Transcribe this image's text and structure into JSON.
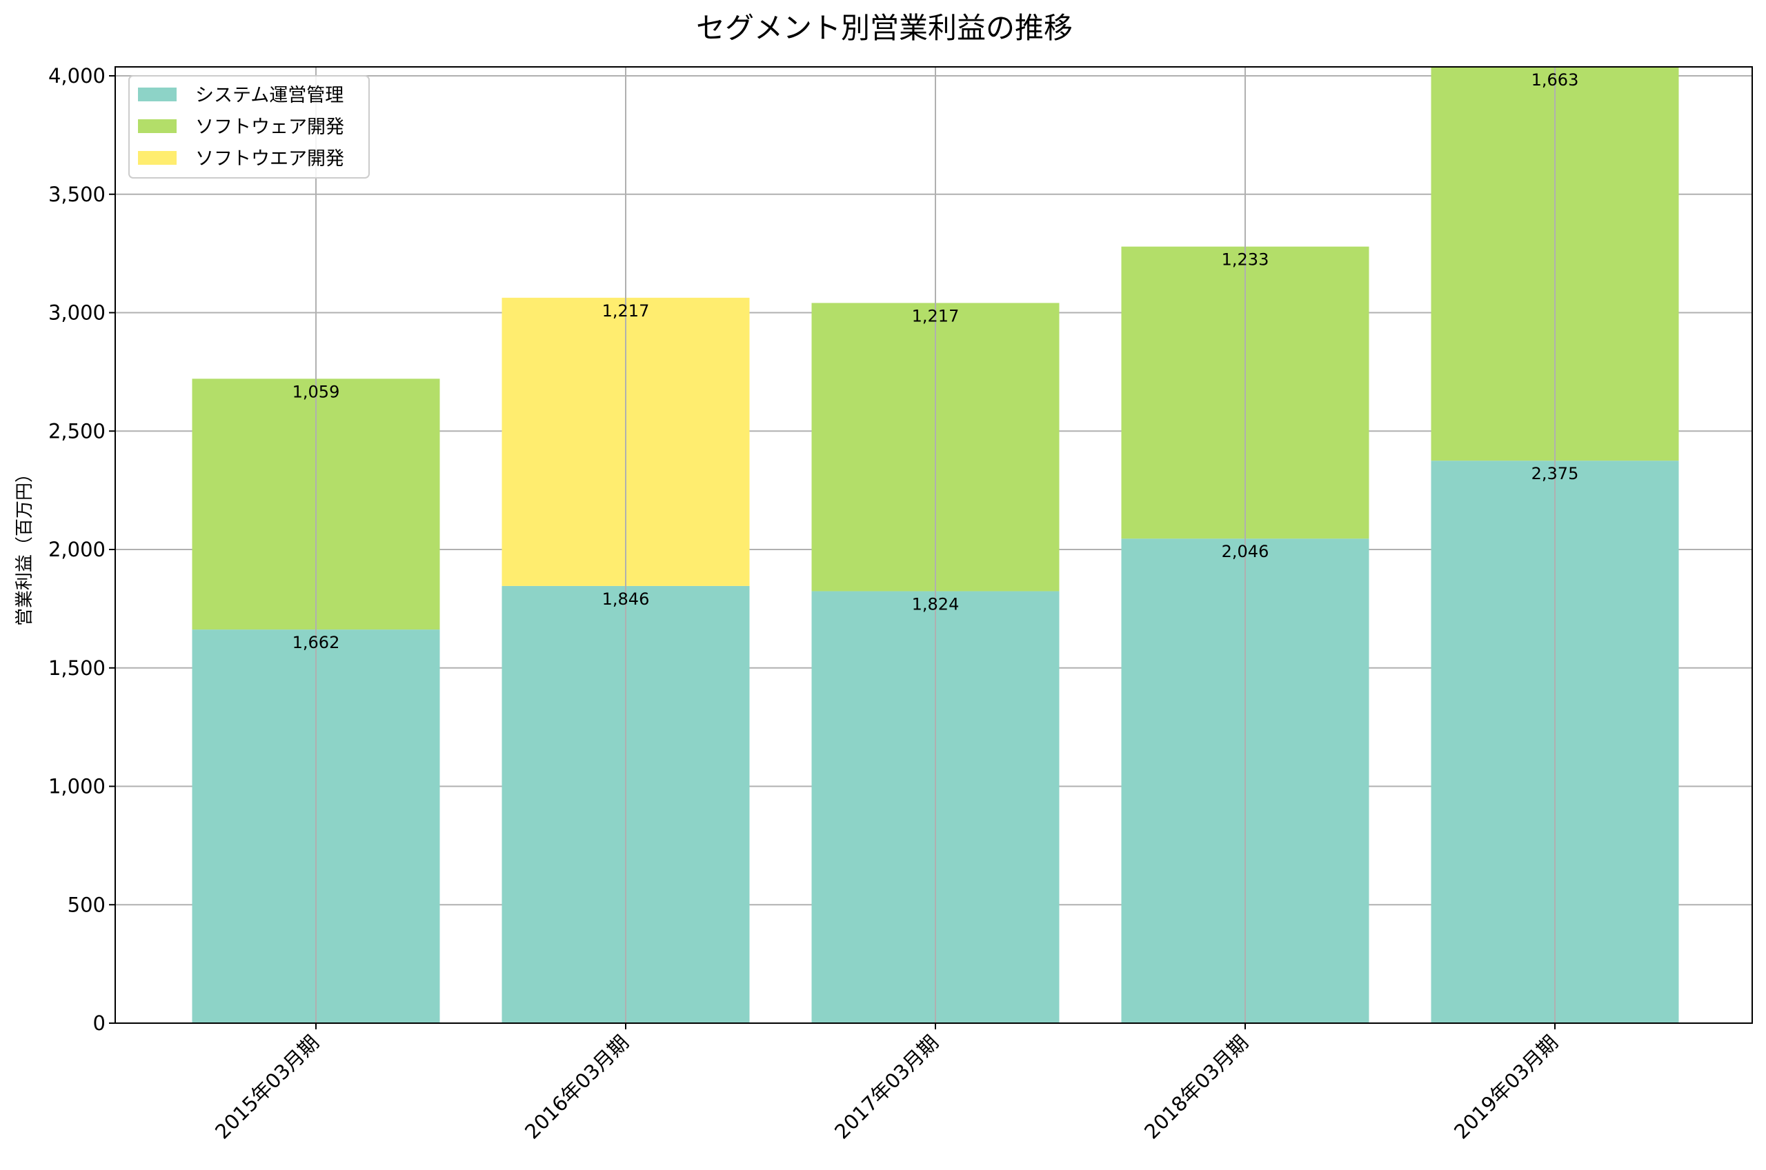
{
  "chart_data": {
    "type": "bar",
    "stacked": true,
    "title": "セグメント別営業利益の推移",
    "xlabel": "",
    "ylabel": "営業利益（百万円）",
    "ylim": [
      0,
      4000
    ],
    "yticks": [
      0,
      500,
      1000,
      1500,
      2000,
      2500,
      3000,
      3500,
      4000
    ],
    "ytick_labels": [
      "0",
      "500",
      "1,000",
      "1,500",
      "2,000",
      "2,500",
      "3,000",
      "3,500",
      "4,000"
    ],
    "grid": true,
    "legend_position": "top-left",
    "categories": [
      "2015年03月期",
      "2016年03月期",
      "2017年03月期",
      "2018年03月期",
      "2019年03月期"
    ],
    "series": [
      {
        "name": "システム運営管理",
        "color": "#8dd3c7",
        "values": [
          1662,
          1846,
          1824,
          2046,
          2375
        ],
        "labels": [
          "1,662",
          "1,846",
          "1,824",
          "2,046",
          "2,375"
        ]
      },
      {
        "name": "ソフトウェア開発",
        "color": "#b3de69",
        "values": [
          1059,
          null,
          1217,
          1233,
          1663
        ],
        "labels": [
          "1,059",
          null,
          "1,217",
          "1,233",
          "1,663"
        ]
      },
      {
        "name": "ソフトウエア開発",
        "color": "#ffed6f",
        "values": [
          null,
          1217,
          null,
          null,
          null
        ],
        "labels": [
          null,
          "1,217",
          null,
          null,
          null
        ]
      }
    ]
  }
}
